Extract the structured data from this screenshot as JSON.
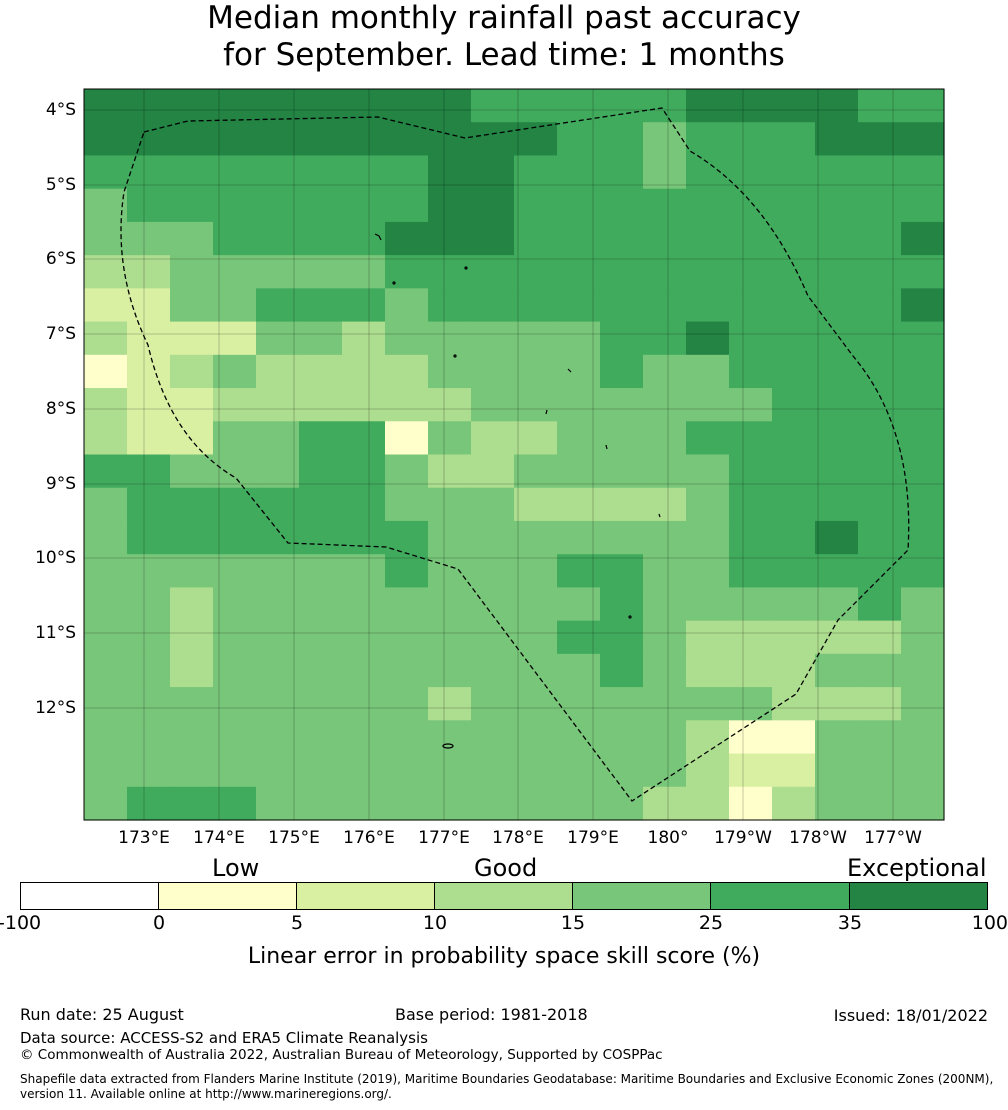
{
  "title": {
    "line1": "Median monthly rainfall past accuracy",
    "line2": "for September. Lead time: 1 months"
  },
  "map": {
    "lat_labels": [
      "4°S",
      "5°S",
      "6°S",
      "7°S",
      "8°S",
      "9°S",
      "10°S",
      "11°S",
      "12°S"
    ],
    "lon_labels": [
      "173°E",
      "174°E",
      "175°E",
      "176°E",
      "177°E",
      "178°E",
      "179°E",
      "180°",
      "179°W",
      "178°W",
      "177°W"
    ],
    "palette": [
      "#ffffcc",
      "#d9f0a3",
      "#addd8e",
      "#78c679",
      "#41ab5d",
      "#238443"
    ],
    "grid_rows": [
      "55555555544444555544",
      "55555555555443444555",
      "44444444554443444444",
      "34444444554444444444",
      "33344445554444444445",
      "22333334444444444444",
      "11334443444444444445",
      "21113323333344544444",
      "01232222333343344444",
      "21122222233333334444",
      "21133440322333444444",
      "44333443223333344444",
      "34444443332222344444",
      "34444444333333344544",
      "33333334333443344444",
      "33233333333343333343",
      "33233333333443222223",
      "33233333333343222333",
      "33333333233333332223",
      "33333333333333200333",
      "33333333333333211333",
      "34443333333332202333"
    ]
  },
  "categories": {
    "low": "Low",
    "good": "Good",
    "exceptional": "Exceptional"
  },
  "colorbar": {
    "ticks": [
      "-100",
      "0",
      "5",
      "10",
      "15",
      "25",
      "35",
      "100"
    ],
    "colors": [
      "#ffffff",
      "#ffffcc",
      "#d9f0a3",
      "#addd8e",
      "#78c679",
      "#41ab5d",
      "#238443"
    ],
    "label": "Linear error in probability space skill score (%)"
  },
  "footer": {
    "run_date": "Run date: 25 August",
    "base_period": "Base period: 1981-2018",
    "issued": "Issued: 18/01/2022",
    "data_source": "Data source: ACCESS-S2 and ERA5 Climate Reanalysis",
    "copyright": "© Commonwealth of Australia 2022, Australian Bureau of Meteorology, Supported by COSPPac",
    "shapefile_line1": "Shapefile data extracted from Flanders Marine Institute (2019), Maritime Boundaries Geodatabase: Maritime Boundaries and Exclusive Economic Zones (200NM),",
    "shapefile_line2": "version 11. Available online at http://www.marineregions.org/."
  }
}
